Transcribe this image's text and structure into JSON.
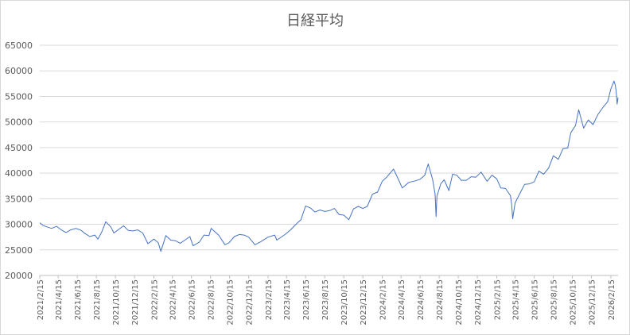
{
  "chart_data": {
    "type": "line",
    "title": "日経平均",
    "xlabel": "",
    "ylabel": "",
    "ylim": [
      20000,
      65000
    ],
    "yticks": [
      20000,
      25000,
      30000,
      35000,
      40000,
      45000,
      50000,
      55000,
      60000,
      65000
    ],
    "grid": true,
    "legend": "none",
    "xlim": [
      "2021-02-15",
      "2026-03-10"
    ],
    "x_tick_labels": [
      "2021/2/15",
      "2021/4/15",
      "2021/6/15",
      "2021/8/15",
      "2021/10/15",
      "2021/12/15",
      "2022/2/15",
      "2022/4/15",
      "2022/6/15",
      "2022/8/15",
      "2022/10/15",
      "2022/12/15",
      "2023/2/15",
      "2023/4/15",
      "2023/6/15",
      "2023/8/15",
      "2023/10/15",
      "2023/12/15",
      "2024/2/15",
      "2024/4/15",
      "2024/6/15",
      "2024/8/15",
      "2024/10/15",
      "2024/12/15",
      "2025/2/15",
      "2025/4/15",
      "2025/6/15",
      "2025/8/15",
      "2025/10/15",
      "2025/12/15",
      "2026/2/15"
    ],
    "line_color": "#4472c4",
    "series": [
      {
        "x": [
          "2021-02-15",
          "2021-02-25",
          "2021-03-10",
          "2021-03-25",
          "2021-04-10",
          "2021-04-25",
          "2021-05-10",
          "2021-05-25",
          "2021-06-10",
          "2021-06-25",
          "2021-07-10",
          "2021-07-25",
          "2021-08-10",
          "2021-08-20",
          "2021-09-01",
          "2021-09-14",
          "2021-09-30",
          "2021-10-10",
          "2021-10-25",
          "2021-11-10",
          "2021-11-25",
          "2021-12-10",
          "2021-12-25",
          "2022-01-10",
          "2022-01-27",
          "2022-02-15",
          "2022-03-01",
          "2022-03-09",
          "2022-03-25",
          "2022-04-10",
          "2022-04-25",
          "2022-05-10",
          "2022-05-25",
          "2022-06-10",
          "2022-06-20",
          "2022-07-10",
          "2022-07-25",
          "2022-08-10",
          "2022-08-17",
          "2022-09-10",
          "2022-09-30",
          "2022-10-13",
          "2022-10-30",
          "2022-11-15",
          "2022-11-30",
          "2022-12-15",
          "2023-01-04",
          "2023-01-20",
          "2023-02-15",
          "2023-03-08",
          "2023-03-15",
          "2023-04-10",
          "2023-04-28",
          "2023-05-15",
          "2023-05-31",
          "2023-06-15",
          "2023-06-30",
          "2023-07-15",
          "2023-07-31",
          "2023-08-15",
          "2023-08-31",
          "2023-09-15",
          "2023-09-30",
          "2023-10-15",
          "2023-10-31",
          "2023-11-15",
          "2023-11-30",
          "2023-12-15",
          "2023-12-29",
          "2024-01-15",
          "2024-01-31",
          "2024-02-15",
          "2024-02-29",
          "2024-03-22",
          "2024-04-05",
          "2024-04-19",
          "2024-05-10",
          "2024-05-31",
          "2024-06-15",
          "2024-06-30",
          "2024-07-11",
          "2024-07-25",
          "2024-08-02",
          "2024-08-05",
          "2024-08-08",
          "2024-08-20",
          "2024-08-31",
          "2024-09-15",
          "2024-09-27",
          "2024-10-10",
          "2024-10-25",
          "2024-11-10",
          "2024-11-25",
          "2024-12-10",
          "2024-12-27",
          "2025-01-15",
          "2025-01-31",
          "2025-02-15",
          "2025-02-28",
          "2025-03-15",
          "2025-03-31",
          "2025-04-04",
          "2025-04-07",
          "2025-04-15",
          "2025-04-30",
          "2025-05-15",
          "2025-05-31",
          "2025-06-15",
          "2025-06-30",
          "2025-07-15",
          "2025-07-31",
          "2025-08-15",
          "2025-08-31",
          "2025-09-15",
          "2025-09-30",
          "2025-10-10",
          "2025-10-25",
          "2025-11-04",
          "2025-11-20",
          "2025-12-05",
          "2025-12-20",
          "2026-01-05",
          "2026-01-20",
          "2026-02-05",
          "2026-02-15",
          "2026-02-25",
          "2026-03-01",
          "2026-03-04",
          "2026-03-07",
          "2026-03-10"
        ],
        "values": [
          30300,
          29800,
          29500,
          29200,
          29600,
          28900,
          28400,
          28900,
          29200,
          28900,
          28200,
          27600,
          27900,
          27100,
          28500,
          30500,
          29500,
          28300,
          29000,
          29700,
          28800,
          28700,
          28900,
          28300,
          26200,
          27100,
          26400,
          24700,
          27800,
          26900,
          26800,
          26300,
          26900,
          27600,
          25800,
          26500,
          27900,
          27800,
          29200,
          27900,
          26000,
          26400,
          27600,
          28000,
          27900,
          27500,
          26000,
          26500,
          27500,
          27900,
          26900,
          28000,
          28900,
          30000,
          30900,
          33600,
          33200,
          32400,
          32800,
          32500,
          32700,
          33100,
          31900,
          31800,
          30900,
          33000,
          33500,
          33100,
          33500,
          35900,
          36300,
          38400,
          39200,
          40800,
          39000,
          37100,
          38200,
          38500,
          38800,
          39600,
          41800,
          38800,
          35900,
          31500,
          35500,
          37900,
          38700,
          36600,
          39800,
          39600,
          38600,
          38600,
          39300,
          39200,
          40200,
          38400,
          39600,
          38900,
          37100,
          37000,
          35600,
          33800,
          31100,
          34200,
          36000,
          37800,
          37900,
          38300,
          40400,
          39800,
          41000,
          43400,
          42700,
          44800,
          44900,
          47900,
          49300,
          52400,
          48800,
          50400,
          49500,
          51500,
          52800,
          54000,
          56500,
          58000,
          57200,
          56000,
          53500,
          54800
        ]
      }
    ]
  }
}
